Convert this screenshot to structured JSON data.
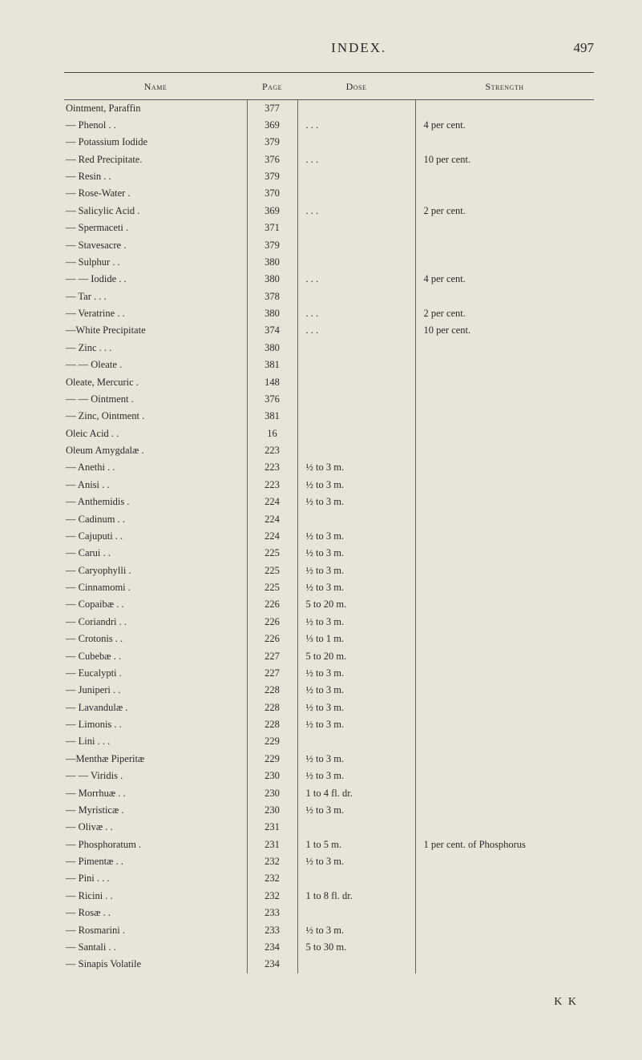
{
  "header": {
    "title": "INDEX.",
    "page_number": "497"
  },
  "columns": {
    "name": "Name",
    "page": "Page",
    "dose": "Dose",
    "strength": "Strength"
  },
  "rows": [
    {
      "name": "Ointment, Paraffin",
      "page": "377",
      "dose": "",
      "strength": ""
    },
    {
      "name": "— Phenol   .       .",
      "page": "369",
      "dose": ".     .     .",
      "strength": "4 per cent."
    },
    {
      "name": "— Potassium Iodide",
      "page": "379",
      "dose": "",
      "strength": ""
    },
    {
      "name": "— Red Precipitate.",
      "page": "376",
      "dose": ".     .     .",
      "strength": "10 per cent."
    },
    {
      "name": "— Resin     .       .",
      "page": "379",
      "dose": "",
      "strength": ""
    },
    {
      "name": "— Rose-Water    .",
      "page": "370",
      "dose": "",
      "strength": ""
    },
    {
      "name": "— Salicylic Acid  .",
      "page": "369",
      "dose": ".     .     .",
      "strength": "2 per cent."
    },
    {
      "name": "— Spermaceti     .",
      "page": "371",
      "dose": "",
      "strength": ""
    },
    {
      "name": "— Stavesacre     .",
      "page": "379",
      "dose": "",
      "strength": ""
    },
    {
      "name": "— Sulphur  .       .",
      "page": "380",
      "dose": "",
      "strength": ""
    },
    {
      "name": "— — Iodide  .      .",
      "page": "380",
      "dose": ".     .     .",
      "strength": "4 per cent."
    },
    {
      "name": "— Tar   .     .       .",
      "page": "378",
      "dose": "",
      "strength": ""
    },
    {
      "name": "— Veratrine .     .",
      "page": "380",
      "dose": ".     .     .",
      "strength": "2 per cent."
    },
    {
      "name": "—White Precipitate",
      "page": "374",
      "dose": ".     .     .",
      "strength": "10 per cent."
    },
    {
      "name": "— Zinc .     .       .",
      "page": "380",
      "dose": "",
      "strength": ""
    },
    {
      "name": "— — Oleate        .",
      "page": "381",
      "dose": "",
      "strength": ""
    },
    {
      "name": "Oleate, Mercuric  .",
      "page": "148",
      "dose": "",
      "strength": ""
    },
    {
      "name": "— — Ointment    .",
      "page": "376",
      "dose": "",
      "strength": ""
    },
    {
      "name": "— Zinc, Ointment .",
      "page": "381",
      "dose": "",
      "strength": ""
    },
    {
      "name": "Oleic Acid   .       .",
      "page": "16",
      "dose": "",
      "strength": ""
    },
    {
      "name": "Oleum Amygdalæ .",
      "page": "223",
      "dose": "",
      "strength": ""
    },
    {
      "name": "— Anethi    .       .",
      "page": "223",
      "dose": "½ to 3 m.",
      "strength": ""
    },
    {
      "name": "— Anisi      .       .",
      "page": "223",
      "dose": "½ to 3 m.",
      "strength": ""
    },
    {
      "name": "— Anthemidis    .",
      "page": "224",
      "dose": "½ to 3 m.",
      "strength": ""
    },
    {
      "name": "— Cadinum .      .",
      "page": "224",
      "dose": "",
      "strength": ""
    },
    {
      "name": "— Cajuputi  .      .",
      "page": "224",
      "dose": "½ to 3 m.",
      "strength": ""
    },
    {
      "name": "— Carui      .       .",
      "page": "225",
      "dose": "½ to 3 m.",
      "strength": ""
    },
    {
      "name": "— Caryophylli    .",
      "page": "225",
      "dose": "½ to 3 m.",
      "strength": ""
    },
    {
      "name": "— Cinnamomi     .",
      "page": "225",
      "dose": "½ to 3 m.",
      "strength": ""
    },
    {
      "name": "— Copaibæ  .      .",
      "page": "226",
      "dose": "5 to 20 m.",
      "strength": ""
    },
    {
      "name": "— Coriandri .      .",
      "page": "226",
      "dose": "½ to 3 m.",
      "strength": ""
    },
    {
      "name": "— Crotonis  .      .",
      "page": "226",
      "dose": "⅓ to 1 m.",
      "strength": ""
    },
    {
      "name": "— Cubebæ   .      .",
      "page": "227",
      "dose": "5 to 20 m.",
      "strength": ""
    },
    {
      "name": "— Eucalypti       .",
      "page": "227",
      "dose": "½ to 3 m.",
      "strength": ""
    },
    {
      "name": "— Juniperi  .      .",
      "page": "228",
      "dose": "½ to 3 m.",
      "strength": ""
    },
    {
      "name": "— Lavandulæ     .",
      "page": "228",
      "dose": "½ to 3 m.",
      "strength": ""
    },
    {
      "name": "— Limonis  .      .",
      "page": "228",
      "dose": "½ to 3 m.",
      "strength": ""
    },
    {
      "name": "— Lini  .     .       .",
      "page": "229",
      "dose": "",
      "strength": ""
    },
    {
      "name": "—Menthæ Piperitæ",
      "page": "229",
      "dose": "½ to 3 m.",
      "strength": ""
    },
    {
      "name": "— — Viridis        .",
      "page": "230",
      "dose": "½ to 3 m.",
      "strength": ""
    },
    {
      "name": "— Morrhuæ .     .",
      "page": "230",
      "dose": "1 to 4 fl. dr.",
      "strength": ""
    },
    {
      "name": "— Myristicæ      .",
      "page": "230",
      "dose": "½ to 3 m.",
      "strength": ""
    },
    {
      "name": "— Olivæ     .       .",
      "page": "231",
      "dose": "",
      "strength": ""
    },
    {
      "name": "— Phosphoratum .",
      "page": "231",
      "dose": "1 to 5 m.",
      "strength": "1 per cent. of Phosphorus"
    },
    {
      "name": "— Pimentæ  .     .",
      "page": "232",
      "dose": "½ to 3 m.",
      "strength": ""
    },
    {
      "name": "— Pini  .     .       .",
      "page": "232",
      "dose": "",
      "strength": ""
    },
    {
      "name": "— Ricini     .       .",
      "page": "232",
      "dose": "1 to 8 fl. dr.",
      "strength": ""
    },
    {
      "name": "— Rosæ      .       .",
      "page": "233",
      "dose": "",
      "strength": ""
    },
    {
      "name": "— Rosmarini      .",
      "page": "233",
      "dose": "½ to 3 m.",
      "strength": ""
    },
    {
      "name": "— Santali   .       .",
      "page": "234",
      "dose": "5 to 30 m.",
      "strength": ""
    },
    {
      "name": "— Sinapis Volatile",
      "page": "234",
      "dose": "",
      "strength": ""
    }
  ],
  "footer_sig": "K K"
}
